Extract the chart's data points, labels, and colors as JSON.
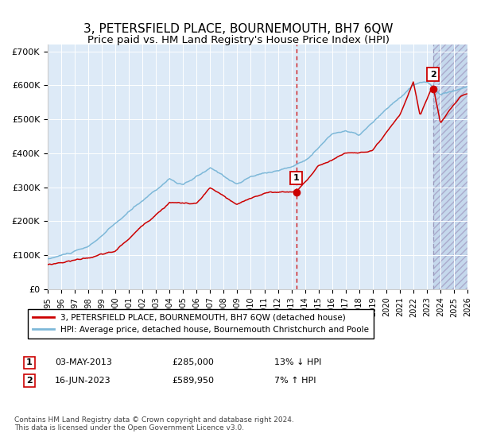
{
  "title": "3, PETERSFIELD PLACE, BOURNEMOUTH, BH7 6QW",
  "subtitle": "Price paid vs. HM Land Registry's House Price Index (HPI)",
  "ylabel_ticks": [
    "£0",
    "£100K",
    "£200K",
    "£300K",
    "£400K",
    "£500K",
    "£600K",
    "£700K"
  ],
  "ytick_values": [
    0,
    100000,
    200000,
    300000,
    400000,
    500000,
    600000,
    700000
  ],
  "ylim": [
    0,
    720000
  ],
  "xlim_start": 1995.0,
  "xlim_end": 2026.0,
  "transaction1_x": 2013.35,
  "transaction1_y": 285000,
  "transaction1_label": "1",
  "transaction2_x": 2023.45,
  "transaction2_y": 589950,
  "transaction2_label": "2",
  "sale1_date": "03-MAY-2013",
  "sale1_price": "£285,000",
  "sale1_hpi": "13% ↓ HPI",
  "sale2_date": "16-JUN-2023",
  "sale2_price": "£589,950",
  "sale2_hpi": "7% ↑ HPI",
  "legend_line1": "3, PETERSFIELD PLACE, BOURNEMOUTH, BH7 6QW (detached house)",
  "legend_line2": "HPI: Average price, detached house, Bournemouth Christchurch and Poole",
  "footnote": "Contains HM Land Registry data © Crown copyright and database right 2024.\nThis data is licensed under the Open Government Licence v3.0.",
  "hpi_line_color": "#7db8d8",
  "price_line_color": "#cc0000",
  "marker_color": "#cc0000",
  "background_color": "#ffffff",
  "plot_bg_color": "#ddeaf7",
  "hatch_bg_color": "#c5d8ec",
  "grid_color": "#ffffff",
  "vline1_color": "#cc0000",
  "vline2_color": "#9999bb"
}
